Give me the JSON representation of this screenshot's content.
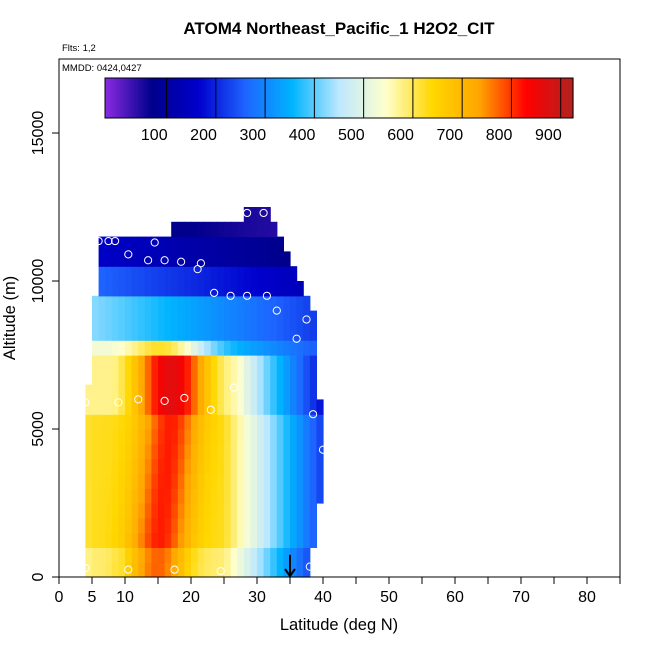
{
  "chart_data": {
    "type": "heatmap",
    "title": "ATOM4 Northeast_Pacific_1 H2O2_CIT",
    "annotations": [
      "Flts: 1,2",
      "MMDD: 0424,0427"
    ],
    "xlabel": "Latitude (deg N)",
    "ylabel": "Altitude (m)",
    "xlim": [
      0,
      85
    ],
    "ylim": [
      0,
      17500
    ],
    "x_ticks": [
      0,
      5,
      10,
      20,
      30,
      40,
      50,
      60,
      70,
      80
    ],
    "x_tick_labels": [
      "0",
      "5",
      "10",
      "20",
      "30",
      "40",
      "50",
      "60",
      "70",
      "80"
    ],
    "y_ticks": [
      0,
      5000,
      10000,
      15000
    ],
    "y_tick_labels": [
      "0",
      "5000",
      "10000",
      "15000"
    ],
    "grid": false,
    "colorbar": {
      "placement": "top-inside",
      "range": [
        0,
        950
      ],
      "ticks": [
        100,
        200,
        300,
        400,
        500,
        600,
        700,
        800,
        900
      ],
      "tick_labels": [
        "100",
        "200",
        "300",
        "400",
        "500",
        "600",
        "700",
        "800",
        "900"
      ],
      "colors": [
        "#8a2be2",
        "#00008b",
        "#0000cd",
        "#1e64ff",
        "#00b4ff",
        "#bde8ff",
        "#ffffcc",
        "#ffd700",
        "#ffa500",
        "#ff0000",
        "#b22222"
      ]
    },
    "grid_latitudes": [
      4,
      5,
      6,
      7,
      8,
      9,
      10,
      11,
      12,
      13,
      14,
      15,
      16,
      17,
      18,
      19,
      20,
      21,
      22,
      23,
      24,
      25,
      26,
      27,
      28,
      29,
      30,
      31,
      32,
      33,
      34,
      35,
      36,
      37,
      38,
      39,
      40
    ],
    "grid_altitudes": [
      0,
      500,
      1000,
      1500,
      2000,
      2500,
      3000,
      3500,
      4000,
      4500,
      5000,
      5500,
      6000,
      6500,
      7000,
      7500,
      8000,
      8500,
      9000,
      9500,
      10000,
      10500,
      11000,
      11500,
      12000
    ],
    "observations": [
      {
        "lat": 4,
        "alt": 300
      },
      {
        "lat": 10.5,
        "alt": 250
      },
      {
        "lat": 17.5,
        "alt": 250
      },
      {
        "lat": 24.5,
        "alt": 200
      },
      {
        "lat": 38,
        "alt": 350
      },
      {
        "lat": 4,
        "alt": 5900
      },
      {
        "lat": 9,
        "alt": 5900
      },
      {
        "lat": 12,
        "alt": 6000
      },
      {
        "lat": 16,
        "alt": 5950
      },
      {
        "lat": 19,
        "alt": 6050
      },
      {
        "lat": 23,
        "alt": 5650
      },
      {
        "lat": 26.5,
        "alt": 6400
      },
      {
        "lat": 38.5,
        "alt": 5500
      },
      {
        "lat": 40,
        "alt": 4300
      },
      {
        "lat": 36,
        "alt": 8050
      },
      {
        "lat": 37.5,
        "alt": 8700
      },
      {
        "lat": 33,
        "alt": 9000
      },
      {
        "lat": 31.5,
        "alt": 9500
      },
      {
        "lat": 28.5,
        "alt": 9500
      },
      {
        "lat": 26,
        "alt": 9500
      },
      {
        "lat": 23.5,
        "alt": 9600
      },
      {
        "lat": 21,
        "alt": 10400
      },
      {
        "lat": 21.5,
        "alt": 10600
      },
      {
        "lat": 18.5,
        "alt": 10650
      },
      {
        "lat": 16,
        "alt": 10700
      },
      {
        "lat": 13.5,
        "alt": 10700
      },
      {
        "lat": 10.5,
        "alt": 10900
      },
      {
        "lat": 14.5,
        "alt": 11300
      },
      {
        "lat": 6,
        "alt": 11350
      },
      {
        "lat": 7.5,
        "alt": 11350
      },
      {
        "lat": 8.5,
        "alt": 11350
      },
      {
        "lat": 28.5,
        "alt": 12300
      },
      {
        "lat": 31,
        "alt": 12300
      }
    ],
    "marker": {
      "type": "arrow-down",
      "lat": 35,
      "alt_top": 750,
      "alt_bottom": 0
    }
  }
}
